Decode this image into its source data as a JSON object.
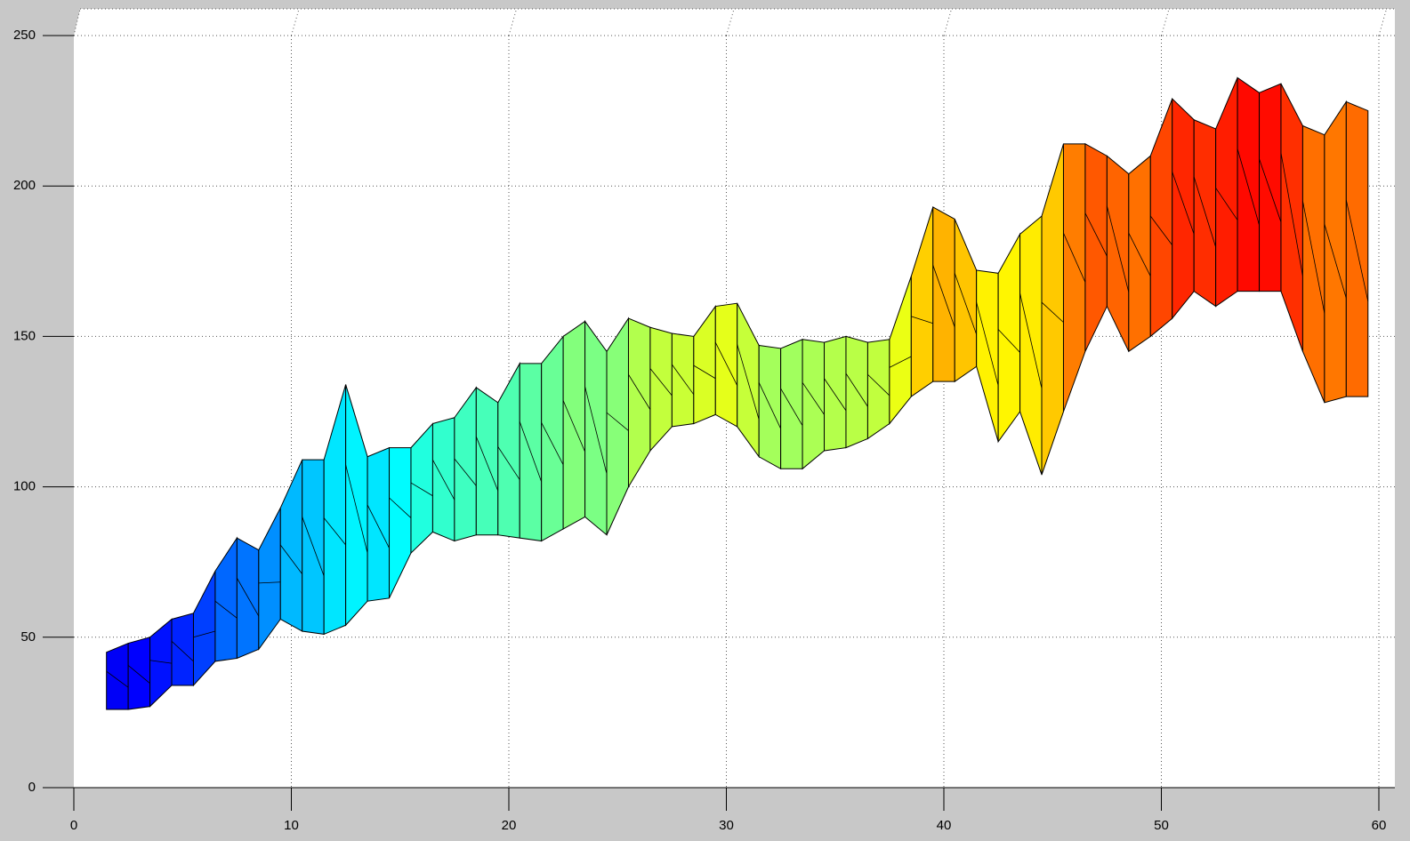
{
  "chart_data": {
    "type": "surface",
    "colormap": "jet",
    "grid": true,
    "xlim": [
      0,
      60
    ],
    "xticks": [
      0,
      10,
      20,
      30,
      40,
      50,
      60
    ],
    "ylim": [
      0,
      250
    ],
    "yticks": [
      0,
      50,
      100,
      150,
      200,
      250
    ],
    "x": [
      1.5,
      2.5,
      3.5,
      4.5,
      5.5,
      6.5,
      7.5,
      8.5,
      9.5,
      10.5,
      11.5,
      12.5,
      13.5,
      14.5,
      15.5,
      16.5,
      17.5,
      18.5,
      19.5,
      20.5,
      21.5,
      22.5,
      23.5,
      24.5,
      25.5,
      26.5,
      27.5,
      28.5,
      29.5,
      30.5,
      31.5,
      32.5,
      33.5,
      34.5,
      35.5,
      36.5,
      37.5,
      38.5,
      39.5,
      40.5,
      41.5,
      42.5,
      43.5,
      44.5,
      45.5,
      46.5,
      47.5,
      48.5,
      49.5,
      50.5,
      51.5,
      52.5,
      53.5,
      54.5,
      55.5,
      56.5,
      57.5,
      58.5,
      59.5
    ],
    "series": [
      {
        "values": [
          45,
          48,
          50,
          56,
          58,
          72,
          83,
          79,
          93,
          109,
          109,
          134,
          110,
          113,
          113,
          121,
          123,
          133,
          128,
          141,
          141,
          150,
          155,
          145,
          156,
          153,
          151,
          150,
          160,
          161,
          147,
          146,
          149,
          148,
          150,
          148,
          149,
          170,
          193,
          189,
          172,
          171,
          184,
          190,
          214,
          214,
          210,
          204,
          210,
          229,
          222,
          219,
          236,
          231,
          234,
          220,
          217,
          228,
          225
        ]
      },
      {
        "values": [
          26,
          26,
          27,
          34,
          34,
          42,
          43,
          46,
          56,
          52,
          51,
          54,
          62,
          63,
          78,
          85,
          82,
          84,
          84,
          83,
          82,
          86,
          90,
          84,
          100,
          112,
          120,
          121,
          124,
          120,
          110,
          106,
          106,
          112,
          113,
          116,
          121,
          130,
          135,
          135,
          140,
          115,
          125,
          104,
          125,
          145,
          160,
          145,
          150,
          156,
          165,
          160,
          165,
          165,
          165,
          145,
          128,
          130,
          130
        ]
      }
    ]
  }
}
